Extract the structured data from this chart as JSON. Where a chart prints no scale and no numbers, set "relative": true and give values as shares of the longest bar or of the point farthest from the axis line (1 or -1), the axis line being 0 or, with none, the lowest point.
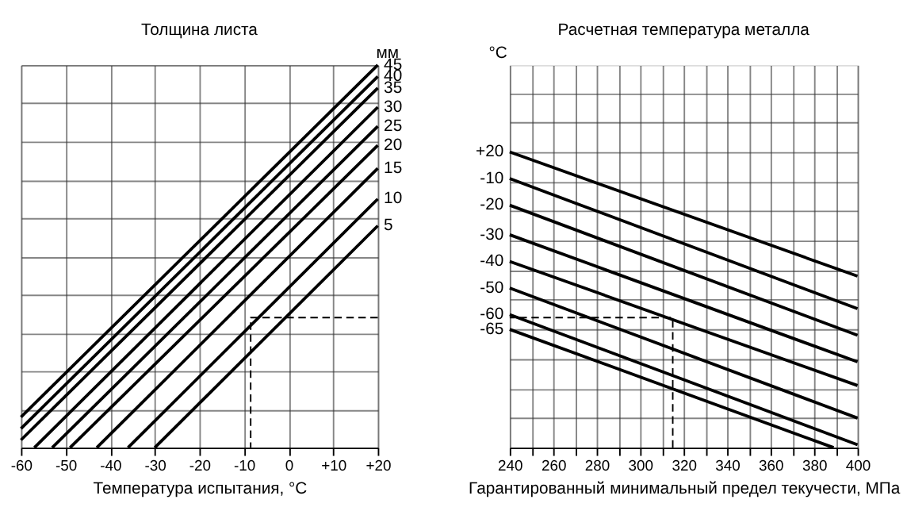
{
  "chart_data": [
    {
      "type": "line",
      "title": "Толщина листа",
      "xlabel": "Температура испытания, °С",
      "relative": true,
      "xlim": [
        -60,
        20
      ],
      "xticks": [
        -60,
        -50,
        -40,
        -30,
        -20,
        -10,
        0,
        {
          "value": 10,
          "label": "+10"
        },
        {
          "value": 20,
          "label": "+20"
        }
      ],
      "grid": true,
      "annotations": [
        "мм"
      ],
      "series": [
        {
          "name": "45",
          "color": "#000000",
          "x": [
            -60,
            20
          ],
          "values": [
            0.08,
            1.0
          ]
        },
        {
          "name": "40",
          "color": "#000000",
          "x": [
            -60,
            20
          ],
          "values": [
            0.05,
            0.97
          ]
        },
        {
          "name": "35",
          "color": "#000000",
          "x": [
            -60,
            20
          ],
          "values": [
            0.02,
            0.94
          ]
        },
        {
          "name": "30",
          "color": "#000000",
          "x": [
            -57,
            20
          ],
          "values": [
            0,
            0.89
          ]
        },
        {
          "name": "25",
          "color": "#000000",
          "x": [
            -53,
            20
          ],
          "values": [
            0,
            0.84
          ]
        },
        {
          "name": "20",
          "color": "#000000",
          "x": [
            -49,
            20
          ],
          "values": [
            0,
            0.79
          ]
        },
        {
          "name": "15",
          "color": "#000000",
          "x": [
            -43,
            20
          ],
          "values": [
            0,
            0.73
          ]
        },
        {
          "name": "10",
          "color": "#000000",
          "x": [
            -36,
            20
          ],
          "values": [
            0,
            0.65
          ]
        },
        {
          "name": "5",
          "color": "#000000",
          "x": [
            -30,
            20
          ],
          "values": [
            0,
            0.58
          ]
        },
        {
          "color": "#000000",
          "line_style": "dashed",
          "x": [
            20,
            -8.5,
            -8.5
          ],
          "values": [
            0.34,
            0.34,
            0
          ]
        }
      ]
    },
    {
      "type": "line",
      "title": "Расчетная температура металла",
      "xlabel": "Гарантированный минимальный предел текучести, МПа",
      "relative": true,
      "xlim": [
        240,
        400
      ],
      "xticks": [
        240,
        {
          "value": 250,
          "label": null
        },
        260,
        {
          "value": 270,
          "label": null
        },
        280,
        {
          "value": 290,
          "label": null
        },
        300,
        {
          "value": 310,
          "label": null
        },
        320,
        {
          "value": 330,
          "label": null
        },
        340,
        {
          "value": 350,
          "label": null
        },
        360,
        {
          "value": 370,
          "label": null
        },
        380,
        {
          "value": 390,
          "label": null
        },
        400
      ],
      "grid": true,
      "annotations": [
        "°С"
      ],
      "series": [
        {
          "name": "+20",
          "color": "#000000",
          "x": [
            240,
            400
          ],
          "values": [
            1.0,
            0.58
          ]
        },
        {
          "name": "-10",
          "color": "#000000",
          "x": [
            240,
            400
          ],
          "values": [
            0.91,
            0.47
          ]
        },
        {
          "name": "-20",
          "color": "#000000",
          "x": [
            240,
            400
          ],
          "values": [
            0.82,
            0.38
          ]
        },
        {
          "name": "-30",
          "color": "#000000",
          "x": [
            240,
            400
          ],
          "values": [
            0.72,
            0.29
          ]
        },
        {
          "name": "-40",
          "color": "#000000",
          "x": [
            240,
            400
          ],
          "values": [
            0.63,
            0.21
          ]
        },
        {
          "name": "-50",
          "color": "#000000",
          "x": [
            240,
            400
          ],
          "values": [
            0.54,
            0.1
          ]
        },
        {
          "name": "-60",
          "color": "#000000",
          "x": [
            240,
            400
          ],
          "values": [
            0.45,
            0.01
          ]
        },
        {
          "name": "-65",
          "color": "#000000",
          "x": [
            240,
            389
          ],
          "values": [
            0.4,
            0
          ]
        },
        {
          "color": "#000000",
          "line_style": "dashed",
          "x": [
            315,
            315,
            240
          ],
          "values": [
            0,
            0.44,
            0.44
          ]
        }
      ]
    }
  ]
}
